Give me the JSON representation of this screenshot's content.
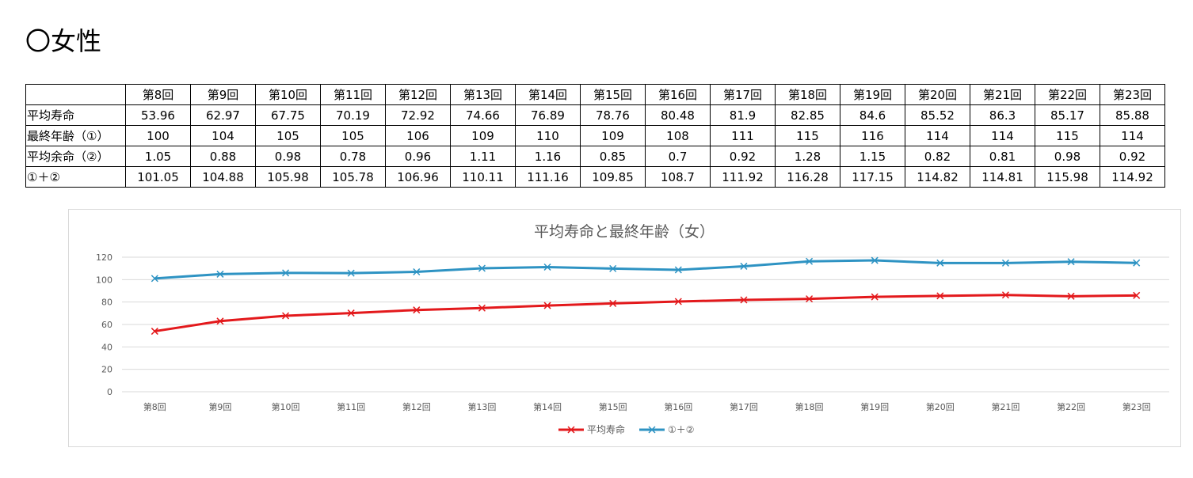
{
  "heading": "〇女性",
  "table": {
    "columns": [
      "第8回",
      "第9回",
      "第10回",
      "第11回",
      "第12回",
      "第13回",
      "第14回",
      "第15回",
      "第16回",
      "第17回",
      "第18回",
      "第19回",
      "第20回",
      "第21回",
      "第22回",
      "第23回"
    ],
    "rows": [
      {
        "label": "平均寿命",
        "values": [
          "53.96",
          "62.97",
          "67.75",
          "70.19",
          "72.92",
          "74.66",
          "76.89",
          "78.76",
          "80.48",
          "81.9",
          "82.85",
          "84.6",
          "85.52",
          "86.3",
          "85.17",
          "85.88"
        ]
      },
      {
        "label": "最終年齢（①）",
        "values": [
          "100",
          "104",
          "105",
          "105",
          "106",
          "109",
          "110",
          "109",
          "108",
          "111",
          "115",
          "116",
          "114",
          "114",
          "115",
          "114"
        ]
      },
      {
        "label": "平均余命（②）",
        "values": [
          "1.05",
          "0.88",
          "0.98",
          "0.78",
          "0.96",
          "1.11",
          "1.16",
          "0.85",
          "0.7",
          "0.92",
          "1.28",
          "1.15",
          "0.82",
          "0.81",
          "0.98",
          "0.92"
        ]
      },
      {
        "label": "①＋②",
        "values": [
          "101.05",
          "104.88",
          "105.98",
          "105.78",
          "106.96",
          "110.11",
          "111.16",
          "109.85",
          "108.7",
          "111.92",
          "116.28",
          "117.15",
          "114.82",
          "114.81",
          "115.98",
          "114.92"
        ]
      }
    ]
  },
  "chart_data": {
    "type": "line",
    "title": "平均寿命と最終年齢（女）",
    "categories": [
      "第8回",
      "第9回",
      "第10回",
      "第11回",
      "第12回",
      "第13回",
      "第14回",
      "第15回",
      "第16回",
      "第17回",
      "第18回",
      "第19回",
      "第20回",
      "第21回",
      "第22回",
      "第23回"
    ],
    "series": [
      {
        "name": "平均寿命",
        "color": "#e3191c",
        "marker": "x",
        "values": [
          53.96,
          62.97,
          67.75,
          70.19,
          72.92,
          74.66,
          76.89,
          78.76,
          80.48,
          81.9,
          82.85,
          84.6,
          85.52,
          86.3,
          85.17,
          85.88
        ]
      },
      {
        "name": "①＋②",
        "color": "#2e93c3",
        "marker": "x",
        "values": [
          101.05,
          104.88,
          105.98,
          105.78,
          106.96,
          110.11,
          111.16,
          109.85,
          108.7,
          111.92,
          116.28,
          117.15,
          114.82,
          114.81,
          115.98,
          114.92
        ]
      }
    ],
    "yticks": [
      "0",
      "20",
      "40",
      "60",
      "80",
      "100",
      "120"
    ],
    "ylim": [
      0,
      120
    ],
    "grid": true,
    "legend": "bottom"
  }
}
